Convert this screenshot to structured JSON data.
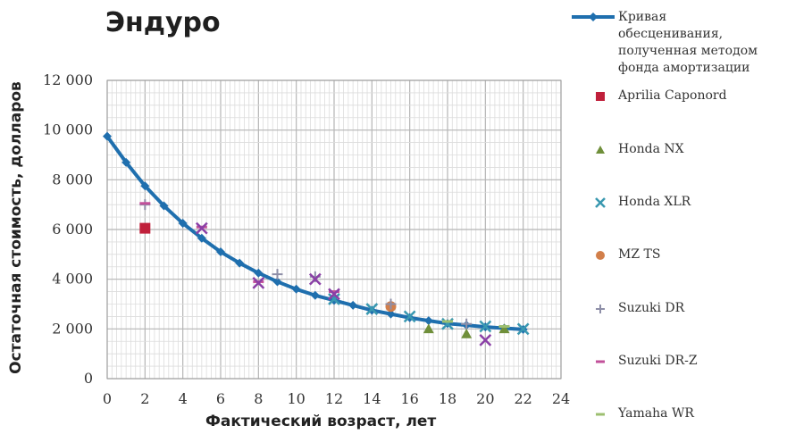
{
  "chart_data": {
    "type": "scatter",
    "title": "Эндуро",
    "xlabel": "Фактический возраст, лет",
    "ylabel": "Остаточная стоимость, долларов",
    "xlim": [
      0,
      24
    ],
    "ylim": [
      0,
      12000
    ],
    "x_ticks": [
      "0",
      "2",
      "4",
      "6",
      "8",
      "10",
      "12",
      "14",
      "16",
      "18",
      "20",
      "22",
      "24"
    ],
    "y_ticks": [
      "0",
      "2 000",
      "4 000",
      "6 000",
      "8 000",
      "10 000",
      "12 000"
    ],
    "grid": true,
    "legend_position": "right",
    "curve": {
      "name": "Кривая обесценивания, полученная методом фонда амортизации",
      "color": "#1f6fae",
      "x": [
        0,
        1,
        2,
        3,
        4,
        5,
        6,
        7,
        8,
        9,
        10,
        11,
        12,
        13,
        14,
        15,
        16,
        17,
        18,
        19,
        20,
        21,
        22
      ],
      "y": [
        9750,
        8700,
        7750,
        6950,
        6250,
        5650,
        5100,
        4650,
        4250,
        3900,
        3600,
        3350,
        3150,
        2950,
        2750,
        2600,
        2450,
        2330,
        2220,
        2150,
        2080,
        2030,
        1980
      ]
    },
    "series": [
      {
        "name": "Aprilia Caponord",
        "marker": "square",
        "color": "#c0203b",
        "points": [
          [
            2,
            6050
          ]
        ]
      },
      {
        "name": "Honda NX",
        "marker": "triangle",
        "color": "#6f8f3a",
        "points": [
          [
            17,
            2000
          ],
          [
            19,
            1800
          ],
          [
            21,
            2000
          ]
        ]
      },
      {
        "name": "Honda XLR",
        "marker": "x",
        "color": "#3a98b0",
        "points": [
          [
            12,
            3200
          ],
          [
            14,
            2800
          ],
          [
            16,
            2500
          ],
          [
            18,
            2200
          ],
          [
            20,
            2100
          ],
          [
            22,
            2000
          ]
        ]
      },
      {
        "name": "MZ TS",
        "marker": "circle",
        "color": "#d27f4a",
        "points": [
          [
            15,
            2900
          ]
        ]
      },
      {
        "name": "Suzuki DR",
        "marker": "plus",
        "color": "#8e8fa8",
        "points": [
          [
            2,
            7000
          ],
          [
            9,
            4200
          ],
          [
            11,
            4100
          ],
          [
            15,
            3000
          ],
          [
            19,
            2200
          ]
        ]
      },
      {
        "name": "Suzuki DR-Z",
        "marker": "dash",
        "color": "#c2509a",
        "points": [
          [
            2,
            7050
          ],
          [
            5,
            6100
          ],
          [
            8,
            3900
          ],
          [
            12,
            3500
          ]
        ]
      },
      {
        "name": "Yamaha WR",
        "marker": "dash",
        "color": "#9dbf70",
        "points": [
          [
            18,
            2300
          ],
          [
            21,
            2100
          ]
        ]
      },
      {
        "name": "",
        "marker": "x",
        "color": "#8a3fa6",
        "points": [
          [
            5,
            6050
          ],
          [
            8,
            3850
          ],
          [
            11,
            4000
          ],
          [
            12,
            3400
          ],
          [
            20,
            1550
          ]
        ]
      }
    ]
  }
}
